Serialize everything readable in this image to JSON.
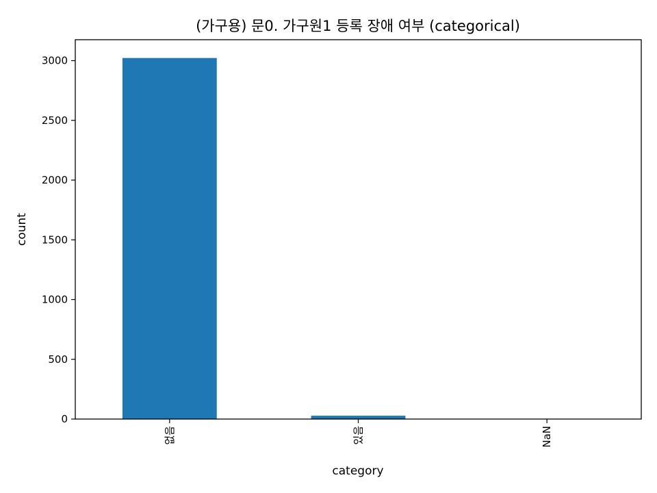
{
  "chart_data": {
    "type": "bar",
    "title": "(가구용) 문0. 가구원1 등록 장애 여부 (categorical)",
    "xlabel": "category",
    "ylabel": "count",
    "categories": [
      "없음",
      "있음",
      "NaN"
    ],
    "values": [
      3022,
      28,
      0
    ],
    "ylim": [
      0,
      3175
    ],
    "yticks": [
      0,
      500,
      1000,
      1500,
      2000,
      2500,
      3000
    ],
    "ytick_labels": [
      "0",
      "500",
      "1000",
      "1500",
      "2000",
      "2500",
      "3000"
    ],
    "bar_color": "#1f77b4",
    "grid": false,
    "legend": "none"
  }
}
